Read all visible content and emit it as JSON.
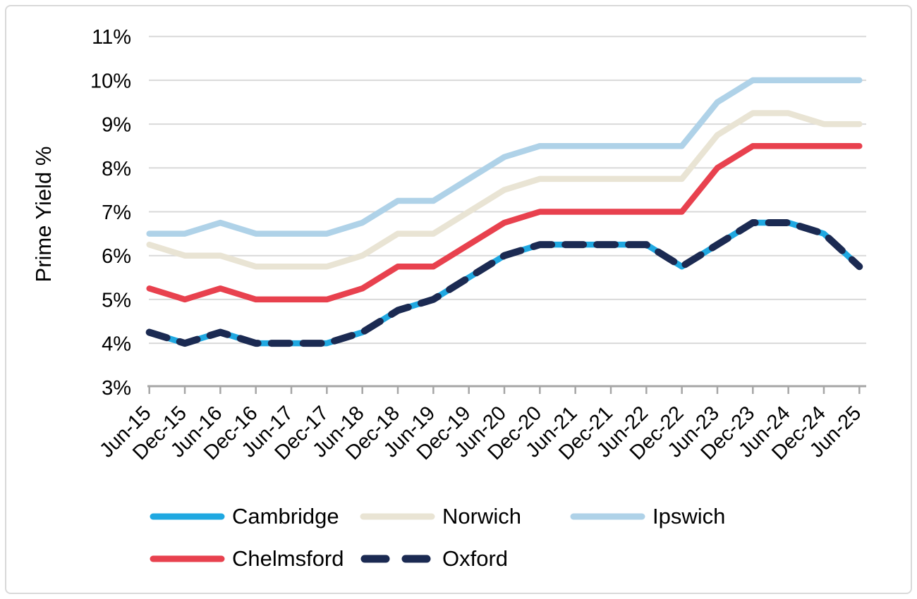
{
  "chart_data": {
    "type": "line",
    "title": "",
    "ylabel": "Prime Yield %",
    "xlabel": "",
    "ylim": [
      3,
      11
    ],
    "y_ticks": [
      11,
      10,
      9,
      8,
      7,
      6,
      5,
      4,
      3
    ],
    "y_tick_suffix": "%",
    "grid": true,
    "legend_position": "bottom",
    "categories": [
      "Jun-15",
      "Dec-15",
      "Jun-16",
      "Dec-16",
      "Jun-17",
      "Dec-17",
      "Jun-18",
      "Dec-18",
      "Jun-19",
      "Dec-19",
      "Jun-20",
      "Dec-20",
      "Jun-21",
      "Dec-21",
      "Jun-22",
      "Dec-22",
      "Jun-23",
      "Dec-23",
      "Jun-24",
      "Dec-24",
      "Jun-25"
    ],
    "series": [
      {
        "name": "Cambridge",
        "color": "#1FA8E1",
        "style": "solid",
        "values": [
          4.25,
          4.0,
          4.25,
          4.0,
          4.0,
          4.0,
          4.25,
          4.75,
          5.0,
          5.5,
          6.0,
          6.25,
          6.25,
          6.25,
          6.25,
          5.75,
          6.25,
          6.75,
          6.75,
          6.5,
          5.75
        ]
      },
      {
        "name": "Norwich",
        "color": "#E9E4D4",
        "style": "solid",
        "values": [
          6.25,
          6.0,
          6.0,
          5.75,
          5.75,
          5.75,
          6.0,
          6.5,
          6.5,
          7.0,
          7.5,
          7.75,
          7.75,
          7.75,
          7.75,
          7.75,
          8.75,
          9.25,
          9.25,
          9.0,
          9.0
        ]
      },
      {
        "name": "Ipswich",
        "color": "#AFD2E8",
        "style": "solid",
        "values": [
          6.5,
          6.5,
          6.75,
          6.5,
          6.5,
          6.5,
          6.75,
          7.25,
          7.25,
          7.75,
          8.25,
          8.5,
          8.5,
          8.5,
          8.5,
          8.5,
          9.5,
          10.0,
          10.0,
          10.0,
          10.0
        ]
      },
      {
        "name": "Chelmsford",
        "color": "#E8414E",
        "style": "solid",
        "values": [
          5.25,
          5.0,
          5.25,
          5.0,
          5.0,
          5.0,
          5.25,
          5.75,
          5.75,
          6.25,
          6.75,
          7.0,
          7.0,
          7.0,
          7.0,
          7.0,
          8.0,
          8.5,
          8.5,
          8.5,
          8.5
        ]
      },
      {
        "name": "Oxford",
        "color": "#1B2A52",
        "style": "dashed",
        "values": [
          4.25,
          4.0,
          4.25,
          4.0,
          4.0,
          4.0,
          4.25,
          4.75,
          5.0,
          5.5,
          6.0,
          6.25,
          6.25,
          6.25,
          6.25,
          5.75,
          6.25,
          6.75,
          6.75,
          6.5,
          5.75
        ]
      }
    ],
    "colors": {
      "gridline": "#D9D9D9",
      "axis": "#A6A6A6",
      "text": "#000000",
      "frame_border": "#D9D9D9"
    }
  }
}
